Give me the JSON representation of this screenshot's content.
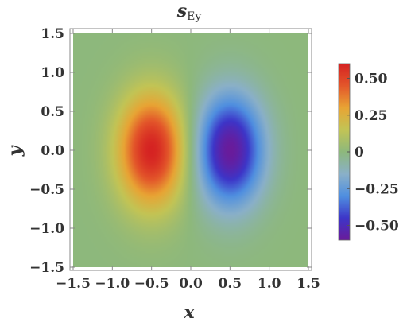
{
  "chart_data": {
    "type": "heatmap",
    "title": "s",
    "title_subscript": "Ey",
    "xlabel": "x",
    "ylabel": "y",
    "xlim": [
      -1.5,
      1.5
    ],
    "ylim": [
      -1.5,
      1.5
    ],
    "x_ticks": [
      -1.5,
      -1.0,
      -0.5,
      0.0,
      0.5,
      1.0,
      1.5
    ],
    "y_ticks": [
      -1.5,
      -1.0,
      -0.5,
      0.0,
      0.5,
      1.0,
      1.5
    ],
    "x_tick_labels": [
      "−1.5",
      "−1.0",
      "−0.5",
      "0.0",
      "0.5",
      "1.0",
      "1.5"
    ],
    "y_tick_labels": [
      "1.5",
      "1.0",
      "0.5",
      "0.0",
      "−0.5",
      "−1.0",
      "−1.5"
    ],
    "y_tick_label_values": [
      1.5,
      1.0,
      0.5,
      0.0,
      -0.5,
      -1.0,
      -1.5
    ],
    "grid": false,
    "features": [
      {
        "kind": "maximum",
        "x": -0.5,
        "y": 0.0,
        "value": 0.6
      },
      {
        "kind": "minimum",
        "x": 0.5,
        "y": 0.0,
        "value": -0.6
      }
    ],
    "color_range": [
      -0.6,
      0.6
    ],
    "colorbar": {
      "placement": "right",
      "ticks": [
        0.5,
        0.25,
        0,
        -0.25,
        -0.5
      ],
      "tick_labels": [
        "0.50",
        "0.25",
        "0",
        "−0.25",
        "−0.50"
      ]
    },
    "colormap": [
      "#6a1b9a",
      "#3d35c8",
      "#4f8fe0",
      "#8ab0c8",
      "#8db87c",
      "#c2c455",
      "#e8a434",
      "#e3562a",
      "#d52222"
    ]
  }
}
